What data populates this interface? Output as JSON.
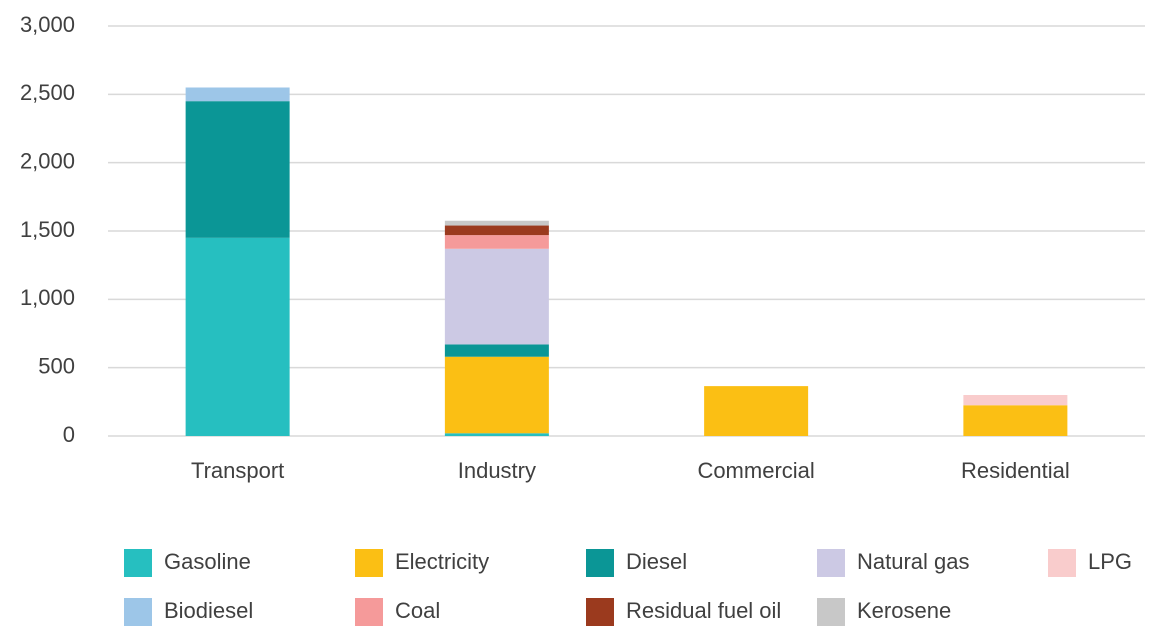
{
  "chart_data": {
    "type": "stacked_bar",
    "categories": [
      "Transport",
      "Industry",
      "Commercial",
      "Residential"
    ],
    "series": [
      {
        "name": "Gasoline",
        "color": "#26bfc0",
        "values": [
          1450,
          20,
          0,
          0
        ]
      },
      {
        "name": "Electricity",
        "color": "#fbbf14",
        "values": [
          0,
          560,
          365,
          225
        ]
      },
      {
        "name": "Diesel",
        "color": "#0b9696",
        "values": [
          1000,
          90,
          0,
          0
        ]
      },
      {
        "name": "Natural gas",
        "color": "#ccc9e4",
        "values": [
          0,
          700,
          0,
          0
        ]
      },
      {
        "name": "LPG",
        "color": "#f9cccc",
        "values": [
          0,
          0,
          0,
          75
        ]
      },
      {
        "name": "Biodiesel",
        "color": "#9dc6e8",
        "values": [
          100,
          0,
          0,
          0
        ]
      },
      {
        "name": "Coal",
        "color": "#f59a9a",
        "values": [
          0,
          100,
          0,
          0
        ]
      },
      {
        "name": "Residual fuel oil",
        "color": "#9b3a1e",
        "values": [
          0,
          70,
          0,
          0
        ]
      },
      {
        "name": "Kerosene",
        "color": "#c8c8c8",
        "values": [
          0,
          35,
          0,
          0
        ]
      }
    ],
    "ylim": [
      0,
      3000
    ],
    "yticks": [
      0,
      500,
      {
        "value": 1000,
        "label": "1,000"
      },
      {
        "value": 1500,
        "label": "1,500"
      },
      {
        "value": 2000,
        "label": "2,000"
      },
      {
        "value": 2500,
        "label": "2,500"
      },
      {
        "value": 3000,
        "label": "3,000"
      }
    ],
    "grid": true,
    "legend": "bottom"
  }
}
